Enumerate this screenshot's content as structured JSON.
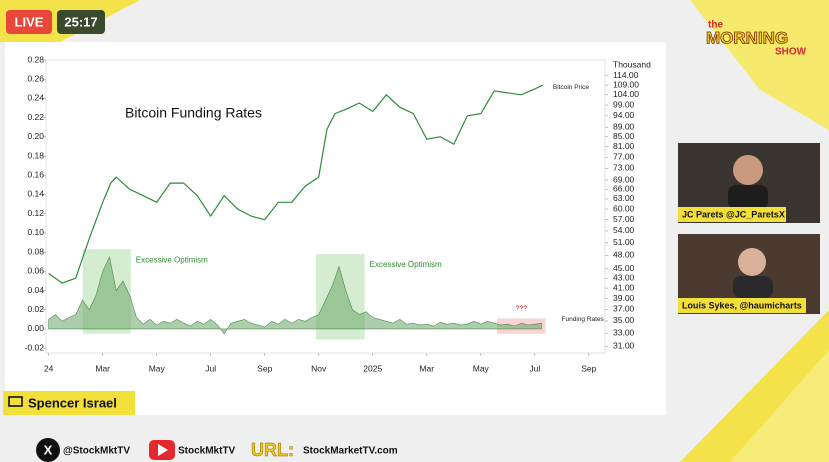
{
  "overlay": {
    "live": "LIVE",
    "timer": "25:17",
    "logo_the": "the",
    "logo_morning": "MORNING",
    "logo_show": "SHOW",
    "guests": [
      "JC Parets @JC_ParetsX",
      "Louis Sykes, @haumicharts"
    ],
    "host": "Spencer Israel",
    "social_x": "@StockMktTV",
    "social_youtube": "StockMktTV",
    "url_label": "URL:",
    "url": "StockMarketTV.com"
  },
  "chart_data": {
    "type": "line",
    "title": "Bitcoin Funding Rates",
    "y2_label": "Thousand",
    "xlim": [
      -0.1,
      20.6
    ],
    "xticks": [
      {
        "value": 0,
        "label": "24"
      },
      {
        "value": 2,
        "label": "Mar"
      },
      {
        "value": 4,
        "label": "May"
      },
      {
        "value": 6,
        "label": "Jul"
      },
      {
        "value": 8,
        "label": "Sep"
      },
      {
        "value": 10,
        "label": "Nov"
      },
      {
        "value": 12,
        "label": "2025"
      },
      {
        "value": 14,
        "label": "Mar"
      },
      {
        "value": 16,
        "label": "May"
      },
      {
        "value": 18,
        "label": "Jul"
      },
      {
        "value": 20,
        "label": "Sep"
      }
    ],
    "ylim": [
      -0.025,
      0.28
    ],
    "yticks": [
      {
        "value": -0.02,
        "label": "-0.02"
      },
      {
        "value": 0,
        "label": "0.00"
      },
      {
        "value": 0.02,
        "label": "0.02"
      },
      {
        "value": 0.04,
        "label": "0.04"
      },
      {
        "value": 0.06,
        "label": "0.06"
      },
      {
        "value": 0.08,
        "label": "0.08"
      },
      {
        "value": 0.1,
        "label": "0.10"
      },
      {
        "value": 0.12,
        "label": "0.12"
      },
      {
        "value": 0.14,
        "label": "0.14"
      },
      {
        "value": 0.16,
        "label": "0.16"
      },
      {
        "value": 0.18,
        "label": "0.18"
      },
      {
        "value": 0.2,
        "label": "0.20"
      },
      {
        "value": 0.22,
        "label": "0.22"
      },
      {
        "value": 0.24,
        "label": "0.24"
      },
      {
        "value": 0.26,
        "label": "0.26"
      },
      {
        "value": 0.28,
        "label": "0.28"
      }
    ],
    "y2lim": [
      30,
      123
    ],
    "y2log": true,
    "y2ticks": [
      {
        "value": 114,
        "label": "114.00"
      },
      {
        "value": 109,
        "label": "109.00"
      },
      {
        "value": 104,
        "label": "104.00"
      },
      {
        "value": 99,
        "label": "99.00"
      },
      {
        "value": 94,
        "label": "94.00"
      },
      {
        "value": 89,
        "label": "89.00"
      },
      {
        "value": 85,
        "label": "85.00"
      },
      {
        "value": 81,
        "label": "81.00"
      },
      {
        "value": 77,
        "label": "77.00"
      },
      {
        "value": 73,
        "label": "73.00"
      },
      {
        "value": 69,
        "label": "69.00"
      },
      {
        "value": 66,
        "label": "66.00"
      },
      {
        "value": 63,
        "label": "63.00"
      },
      {
        "value": 60,
        "label": "60.00"
      },
      {
        "value": 57,
        "label": "57.00"
      },
      {
        "value": 54,
        "label": "54.00"
      },
      {
        "value": 51,
        "label": "51.00"
      },
      {
        "value": 48,
        "label": "48.00"
      },
      {
        "value": 45,
        "label": "45.00"
      },
      {
        "value": 43,
        "label": "43.00"
      },
      {
        "value": 41,
        "label": "41.00"
      },
      {
        "value": 39,
        "label": "39.00"
      },
      {
        "value": 37,
        "label": "37.00"
      },
      {
        "value": 35,
        "label": "35.00"
      },
      {
        "value": 33,
        "label": "33.00"
      },
      {
        "value": 31,
        "label": "31.00"
      }
    ],
    "series": [
      {
        "name": "Bitcoin Price",
        "color": "#2e8b3a",
        "axis": "y2",
        "x": [
          0,
          0.5,
          1,
          1.5,
          2,
          2.3,
          2.5,
          3,
          3.5,
          4,
          4.5,
          5,
          5.5,
          6,
          6.5,
          7,
          7.5,
          8,
          8.5,
          9,
          9.5,
          10,
          10.3,
          10.6,
          11,
          11.5,
          12,
          12.5,
          13,
          13.5,
          14,
          14.5,
          15,
          15.5,
          16,
          16.5,
          17,
          17.5,
          18,
          18.3
        ],
        "values": [
          44,
          42,
          43,
          52,
          62,
          68,
          70,
          66,
          64,
          62,
          68,
          68,
          64,
          58,
          64,
          60,
          58,
          57,
          62,
          62,
          67,
          70,
          88,
          95,
          97,
          100,
          96,
          104,
          98,
          95,
          84,
          85,
          82,
          94,
          95,
          106,
          105,
          104,
          107,
          109
        ]
      },
      {
        "name": "Funding Rates",
        "color": "#6aa56a",
        "axis": "y",
        "x": [
          0,
          0.25,
          0.5,
          0.75,
          1,
          1.25,
          1.5,
          1.75,
          2,
          2.25,
          2.5,
          2.75,
          3,
          3.25,
          3.5,
          3.75,
          4,
          4.25,
          4.5,
          4.75,
          5,
          5.25,
          5.5,
          5.75,
          6,
          6.25,
          6.5,
          6.75,
          7,
          7.25,
          7.5,
          7.75,
          8,
          8.25,
          8.5,
          8.75,
          9,
          9.25,
          9.5,
          9.75,
          10,
          10.25,
          10.5,
          10.75,
          11,
          11.25,
          11.5,
          11.75,
          12,
          12.25,
          12.5,
          12.75,
          13,
          13.25,
          13.5,
          13.75,
          14,
          14.25,
          14.5,
          14.75,
          15,
          15.25,
          15.5,
          15.75,
          16,
          16.25,
          16.5,
          16.75,
          17,
          17.25,
          17.5,
          17.75,
          18,
          18.25
        ],
        "values": [
          0.01,
          0.015,
          0.008,
          0.012,
          0.015,
          0.03,
          0.02,
          0.035,
          0.06,
          0.075,
          0.04,
          0.05,
          0.035,
          0.012,
          0.005,
          0.01,
          0.004,
          0.008,
          0.006,
          0.01,
          0.006,
          0.003,
          0.008,
          0.005,
          0.01,
          0.004,
          -0.005,
          0.006,
          0.008,
          0.01,
          0.006,
          0.004,
          0.002,
          0.008,
          0.005,
          0.01,
          0.006,
          0.01,
          0.008,
          0.012,
          0.015,
          0.03,
          0.045,
          0.065,
          0.04,
          0.02,
          0.015,
          0.018,
          0.012,
          0.01,
          0.008,
          0.006,
          0.01,
          0.005,
          0.006,
          0.004,
          0.005,
          0.003,
          0.007,
          0.005,
          0.006,
          0.004,
          0.005,
          0.008,
          0.005,
          0.008,
          0.006,
          0.004,
          0.005,
          0.003,
          0.006,
          0.004,
          0.005,
          0.006
        ]
      }
    ],
    "highlights": [
      {
        "x": [
          1.26,
          3.04
        ],
        "y": [
          -0.005,
          0.083
        ],
        "color": "#c9e8c4",
        "label": "Excessive Optimism"
      },
      {
        "x": [
          9.9,
          11.7
        ],
        "y": [
          -0.011,
          0.078
        ],
        "color": "#c9e8c4",
        "label": "Excessive Optimism"
      },
      {
        "x": [
          16.6,
          18.4
        ],
        "y": [
          -0.005,
          0.011
        ],
        "color": "#f6c9cc",
        "label": "???"
      }
    ]
  }
}
